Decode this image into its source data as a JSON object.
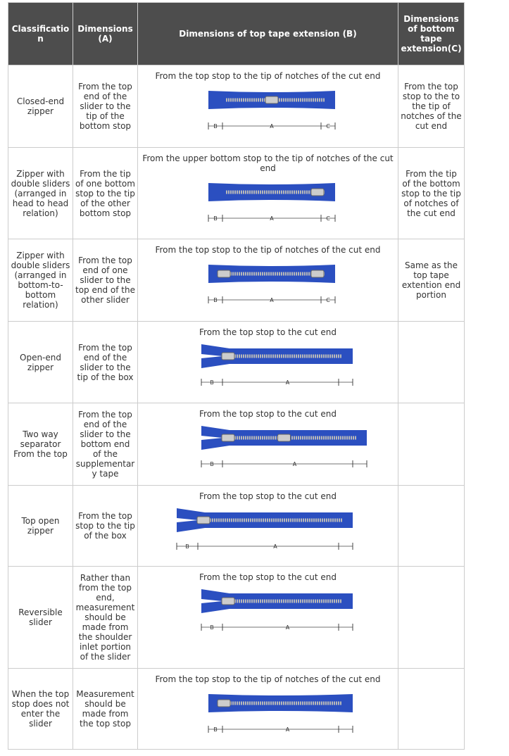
{
  "table": {
    "header": [
      "Classification",
      "Dimensions (A)",
      "Dimensions of top tape extension (B)",
      "Dimensions of bottom tape extension(C)"
    ],
    "rows": [
      {
        "classification": "Closed-end zipper",
        "a": "From the top end of the slider to the tip of the bottom stop",
        "b": "From the top stop to the tip of notches of the cut end",
        "c": "From the top stop to the to the tip of notches of the cut end",
        "labels": [
          "B",
          "A",
          "C"
        ]
      },
      {
        "classification": "Zipper with double sliders (arranged in head to head relation)",
        "a": "From the tip of one bottom stop to the tip of the other bottom stop",
        "b": "From the upper bottom stop to the tip of notches of the cut end",
        "c": "From the tip of the bottom stop to the tip of notches of the cut end",
        "labels": [
          "B",
          "A",
          "C"
        ]
      },
      {
        "classification": "Zipper with double sliders (arranged in bottom-to-bottom relation)",
        "a": "From the top end of one slider to the top end of the other slider",
        "b": "From the top stop to the tip of notches of the cut end",
        "c": "Same as the top tape extention end portion",
        "labels": [
          "B",
          "A",
          "C"
        ]
      },
      {
        "classification": "Open-end zipper",
        "a": "From the top end of the slider to the tip of the box",
        "b": "From the top stop to the cut end",
        "labels": [
          "B",
          "A"
        ]
      },
      {
        "classification": "Two way separator From the top",
        "a": "From the top end of the slider to the bottom end of the supplementary tape",
        "b": "From the top stop to the cut end",
        "labels": [
          "B",
          "A"
        ]
      },
      {
        "classification": "Top open zipper",
        "a": "From the top stop to the tip of the box",
        "b": "From the top stop to the cut end",
        "labels": [
          "B",
          "A"
        ]
      },
      {
        "classification": "Reversible slider",
        "a": "Rather than from the top end, measurement should be made from the shoulder inlet portion of the slider",
        "b": "From the top stop to the cut end",
        "labels": [
          "B",
          "A"
        ]
      },
      {
        "classification": "When the top stop does not enter the slider",
        "a": "Measurement should be made from the top stop",
        "b": "From the top stop to the tip of notches of the cut end",
        "labels": [
          "B",
          "A"
        ]
      }
    ]
  }
}
